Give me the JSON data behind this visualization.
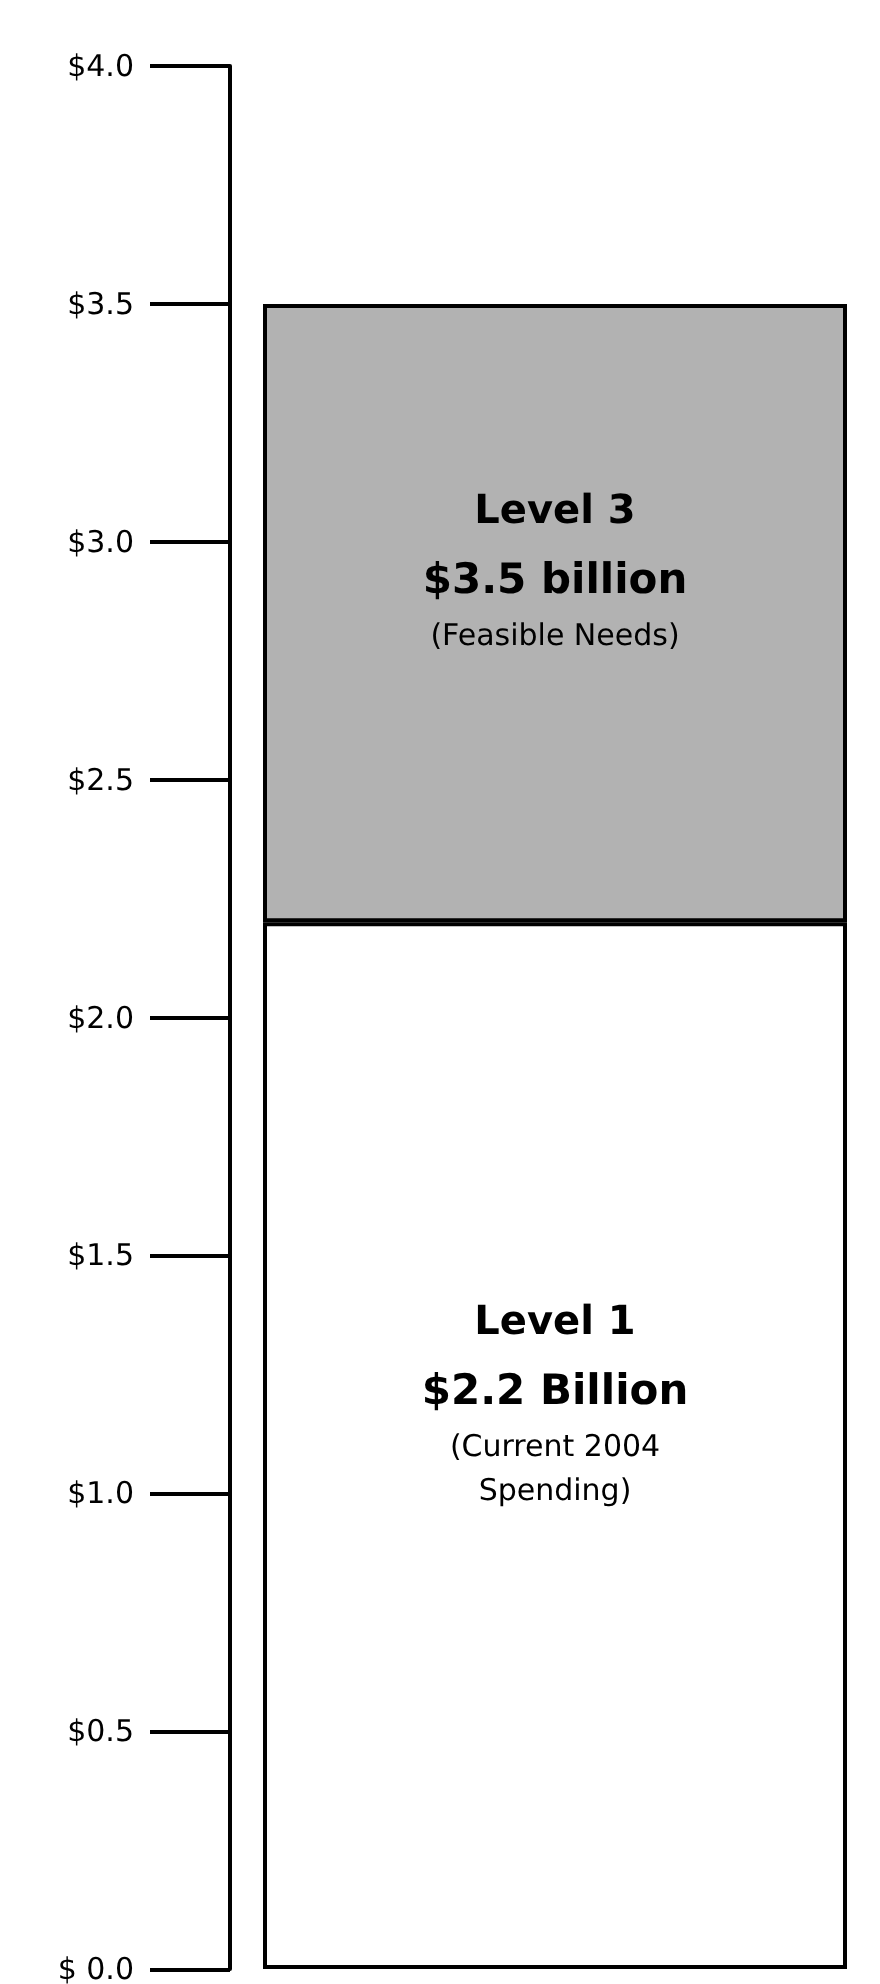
{
  "chart_data": {
    "type": "bar",
    "stacked": true,
    "categories": [
      null
    ],
    "series": [
      {
        "name": "Level 1",
        "color": "#ffffff",
        "values": [
          2.2
        ],
        "value_labels": [
          "$2.2 Billion"
        ]
      },
      {
        "name": "Level 3",
        "color": "#b2b2b2",
        "values": [
          1.3
        ]
      }
    ],
    "ylim": [
      0,
      4
    ],
    "yticks": [
      {
        "value": 0,
        "label": "$ 0.0"
      },
      {
        "value": 0.5,
        "label": "$0.5"
      },
      {
        "value": 1,
        "label": "$1.0"
      },
      {
        "value": 1.5,
        "label": "$1.5"
      },
      {
        "value": 2,
        "label": "$2.0"
      },
      {
        "value": 2.5,
        "label": "$2.5"
      },
      {
        "value": 3,
        "label": "$3.0"
      },
      {
        "value": 3.5,
        "label": "$3.5"
      },
      {
        "value": 4,
        "label": "$4.0"
      }
    ],
    "totals": [
      "$3.5 billion"
    ],
    "annotations": [
      "(Current 2004 Spending)",
      "(Feasible Needs)"
    ],
    "grid": false,
    "legend": false
  }
}
